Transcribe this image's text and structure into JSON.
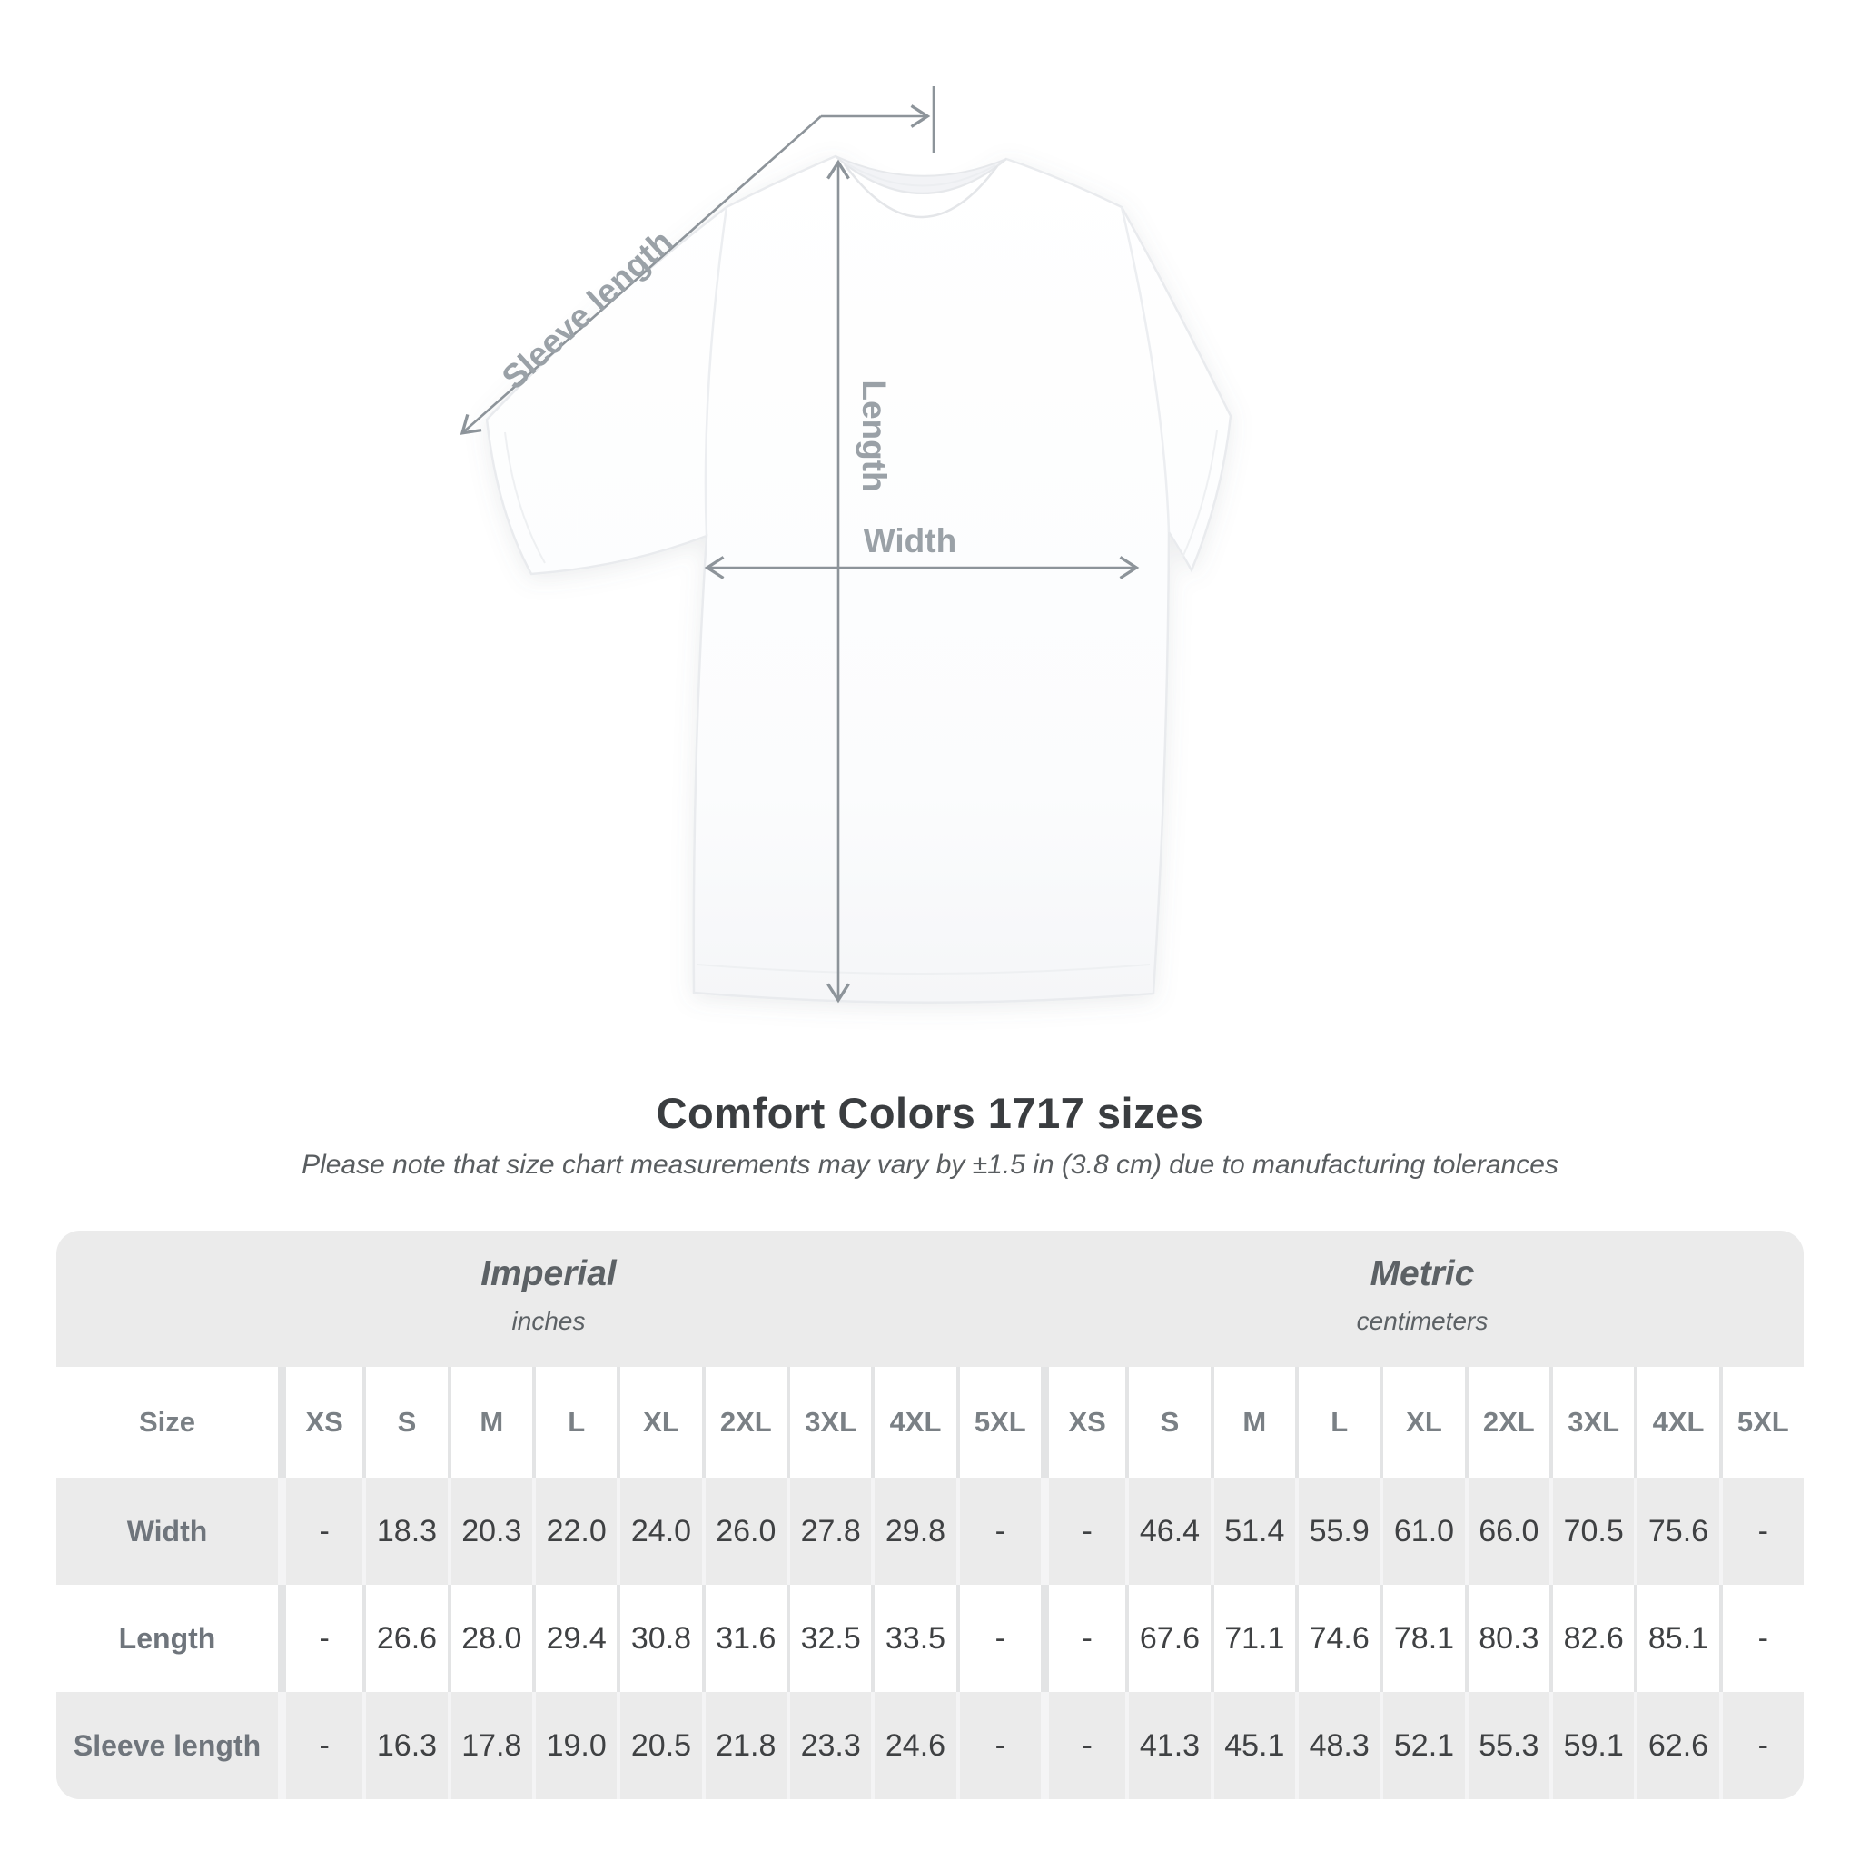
{
  "diagram": {
    "sleeve_label": "Sleeve length",
    "length_label": "Length",
    "width_label": "Width"
  },
  "heading": {
    "title": "Comfort Colors 1717 sizes",
    "subtitle": "Please note that size chart measurements may vary by ±1.5 in (3.8 cm) due to manufacturing tolerances"
  },
  "table": {
    "size_label": "Size",
    "groups": [
      {
        "label": "Imperial",
        "sublabel": "inches"
      },
      {
        "label": "Metric",
        "sublabel": "centimeters"
      }
    ],
    "sizes": [
      "XS",
      "S",
      "M",
      "L",
      "XL",
      "2XL",
      "3XL",
      "4XL",
      "5XL"
    ],
    "rows": [
      {
        "label": "Width",
        "imperial": [
          "-",
          "18.3",
          "20.3",
          "22.0",
          "24.0",
          "26.0",
          "27.8",
          "29.8",
          "-"
        ],
        "metric": [
          "-",
          "46.4",
          "51.4",
          "55.9",
          "61.0",
          "66.0",
          "70.5",
          "75.6",
          "-"
        ]
      },
      {
        "label": "Length",
        "imperial": [
          "-",
          "26.6",
          "28.0",
          "29.4",
          "30.8",
          "31.6",
          "32.5",
          "33.5",
          "-"
        ],
        "metric": [
          "-",
          "67.6",
          "71.1",
          "74.6",
          "78.1",
          "80.3",
          "82.6",
          "85.1",
          "-"
        ]
      },
      {
        "label": "Sleeve length",
        "imperial": [
          "-",
          "16.3",
          "17.8",
          "19.0",
          "20.5",
          "21.8",
          "23.3",
          "24.6",
          "-"
        ],
        "metric": [
          "-",
          "41.3",
          "45.1",
          "48.3",
          "52.1",
          "55.3",
          "59.1",
          "62.6",
          "-"
        ]
      }
    ]
  },
  "colors": {
    "table_background": "#ebebeb",
    "value_text": "#3f4143",
    "label_gray": "#7a8085",
    "arrow_gray": "#8d949a",
    "diagram_label_gray": "#9aa1a7",
    "title_text": "#3a3d40"
  },
  "chart_data": {
    "type": "table",
    "title": "Comfort Colors 1717 sizes",
    "note": "Please note that size chart measurements may vary by ±1.5 in (3.8 cm) due to manufacturing tolerances",
    "unit_groups": [
      {
        "name": "Imperial",
        "unit": "inches"
      },
      {
        "name": "Metric",
        "unit": "centimeters"
      }
    ],
    "columns": [
      "XS",
      "S",
      "M",
      "L",
      "XL",
      "2XL",
      "3XL",
      "4XL",
      "5XL"
    ],
    "rows": [
      {
        "measure": "Width",
        "imperial_in": [
          null,
          18.3,
          20.3,
          22.0,
          24.0,
          26.0,
          27.8,
          29.8,
          null
        ],
        "metric_cm": [
          null,
          46.4,
          51.4,
          55.9,
          61.0,
          66.0,
          70.5,
          75.6,
          null
        ]
      },
      {
        "measure": "Length",
        "imperial_in": [
          null,
          26.6,
          28.0,
          29.4,
          30.8,
          31.6,
          32.5,
          33.5,
          null
        ],
        "metric_cm": [
          null,
          67.6,
          71.1,
          74.6,
          78.1,
          80.3,
          82.6,
          85.1,
          null
        ]
      },
      {
        "measure": "Sleeve length",
        "imperial_in": [
          null,
          16.3,
          17.8,
          19.0,
          20.5,
          21.8,
          23.3,
          24.6,
          null
        ],
        "metric_cm": [
          null,
          41.3,
          45.1,
          48.3,
          52.1,
          55.3,
          59.1,
          62.6,
          null
        ]
      }
    ]
  }
}
